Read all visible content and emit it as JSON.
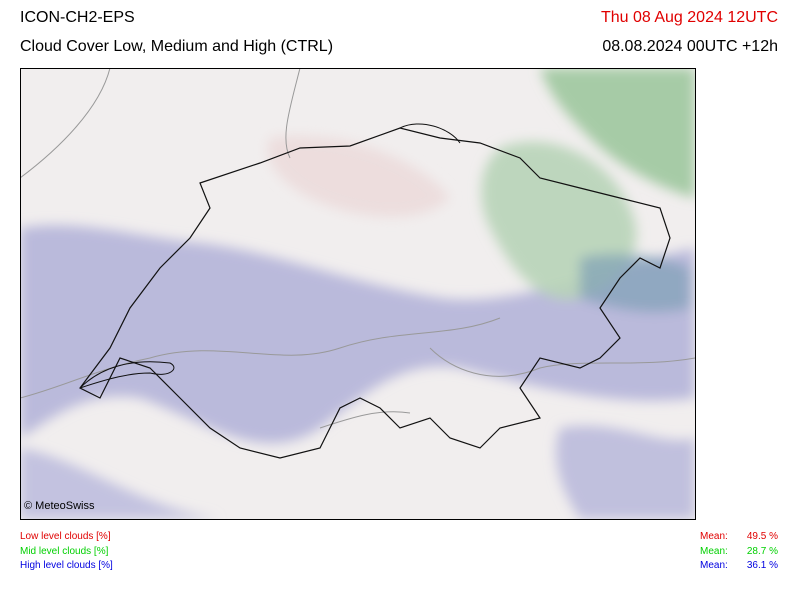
{
  "header": {
    "model": "ICON-CH2-EPS",
    "product": "Cloud Cover Low, Medium and High (CTRL)",
    "valid_time": "Thu 08 Aug 2024 12UTC",
    "run_time": "08.08.2024 00UTC +12h"
  },
  "map": {
    "copyright": "© MeteoSwiss"
  },
  "legend": [
    {
      "label": "Low level clouds [%]",
      "mean_label": "Mean:",
      "mean": "49.5 %",
      "color": "#e00000"
    },
    {
      "label": "Mid level clouds [%]",
      "mean_label": "Mean:",
      "mean": "28.7 %",
      "color": "#00d000"
    },
    {
      "label": "High level clouds [%]",
      "mean_label": "Mean:",
      "mean": "36.1 %",
      "color": "#0000e0"
    }
  ]
}
